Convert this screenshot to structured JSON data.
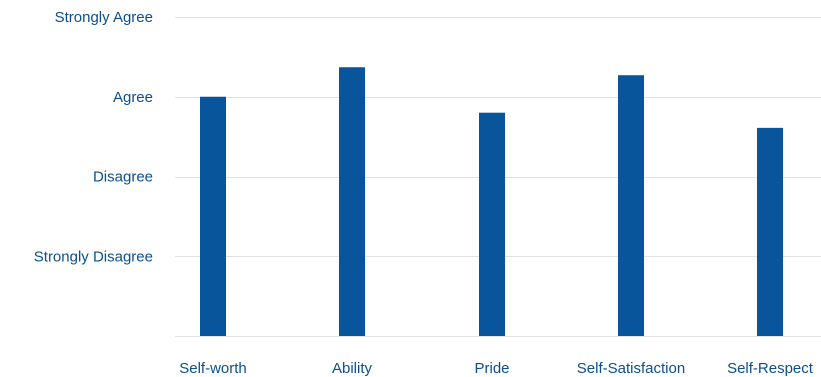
{
  "chart_data": {
    "type": "bar",
    "title": "",
    "xlabel": "",
    "ylabel": "",
    "categories": [
      "Self-worth",
      "Ability",
      "Pride",
      "Self-Satisfaction",
      "Self-Respect"
    ],
    "values": [
      3.0,
      3.37,
      2.8,
      3.27,
      2.61
    ],
    "ylim": [
      0,
      4
    ],
    "yticks": [
      {
        "value": 1,
        "label": "Strongly Disagree"
      },
      {
        "value": 2,
        "label": "Disagree"
      },
      {
        "value": 3,
        "label": "Agree"
      },
      {
        "value": 4,
        "label": "Strongly Agree"
      }
    ],
    "grid": true,
    "legend": "none",
    "colors": {
      "bar": "#08559b",
      "label": "#0b4f8f",
      "grid": "#e2e2e2"
    }
  }
}
